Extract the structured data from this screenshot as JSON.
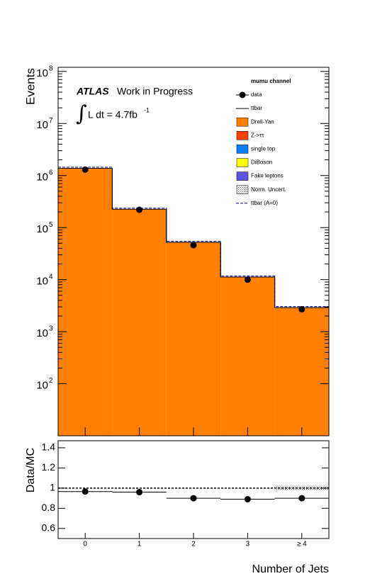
{
  "chart_data": [
    {
      "type": "bar",
      "y_label": "Events",
      "log_scale": true,
      "ylim": [
        10,
        120000000
      ],
      "yticks": [
        {
          "value": 100,
          "label": "10",
          "exponent": "2"
        },
        {
          "value": 1000,
          "label": "10",
          "exponent": "3"
        },
        {
          "value": 10000,
          "label": "10",
          "exponent": "4"
        },
        {
          "value": 100000,
          "label": "10",
          "exponent": "5"
        },
        {
          "value": 1000000,
          "label": "10",
          "exponent": "6"
        },
        {
          "value": 10000000,
          "label": "10",
          "exponent": "7"
        },
        {
          "value": 100000000,
          "label": "10",
          "exponent": "8"
        }
      ],
      "annotations": {
        "experiment": "ATLAS",
        "status": "Work in Progress",
        "luminosity": "L dt = 4.7fb",
        "luminosity_exponent": "-1"
      },
      "legend_title": "mumu channel",
      "series": [
        {
          "name": "data",
          "color": "#000000",
          "values": [
            1300000,
            220000,
            46000,
            10000,
            2700
          ]
        },
        {
          "name": "ttbar",
          "color": "#000000"
        },
        {
          "name": "Drell-Yan",
          "color": "#ff8000",
          "values": [
            1380000,
            225000,
            52000,
            11200,
            2900
          ]
        },
        {
          "name": "Z->ττ",
          "color": "#ff4000"
        },
        {
          "name": "single top",
          "color": "#0a7ff5"
        },
        {
          "name": "DiBoson",
          "color": "#ffff00"
        },
        {
          "name": "Fake leptons",
          "color": "#5a55e0"
        },
        {
          "name": "Norm. Uncert.",
          "color": "#9a9a9a"
        },
        {
          "name": "ttbar (A=0)",
          "color": "#1a1a9a"
        }
      ]
    },
    {
      "type": "scatter",
      "y_label": "Data/MC",
      "x_label": "Number of Jets",
      "categories": [
        "0",
        "1",
        "2",
        "3",
        "≥ 4"
      ],
      "values": [
        0.966,
        0.96,
        0.9,
        0.89,
        0.9
      ],
      "ylim": [
        0.5,
        1.47
      ],
      "yticks": [
        0.6,
        0.8,
        1,
        1.2,
        1.4
      ],
      "reference_line": 1
    }
  ]
}
